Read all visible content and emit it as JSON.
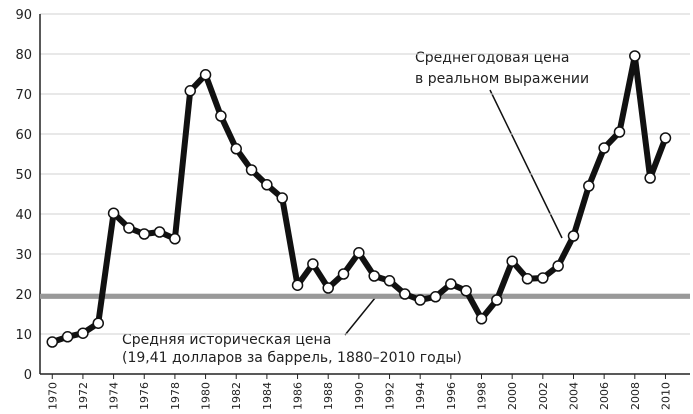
{
  "chart_data": {
    "type": "line",
    "x": [
      1970,
      1971,
      1972,
      1973,
      1974,
      1975,
      1976,
      1977,
      1978,
      1979,
      1980,
      1981,
      1982,
      1983,
      1984,
      1985,
      1986,
      1987,
      1988,
      1989,
      1990,
      1991,
      1992,
      1993,
      1994,
      1995,
      1996,
      1997,
      1998,
      1999,
      2000,
      2001,
      2002,
      2003,
      2004,
      2005,
      2006,
      2007,
      2008,
      2009,
      2010
    ],
    "series": [
      {
        "color": "#111111",
        "values": [
          8,
          9.3,
          10.2,
          12.7,
          40.2,
          36.5,
          35,
          35.5,
          33.8,
          70.8,
          74.8,
          64.5,
          56.3,
          51,
          47.3,
          44,
          22.2,
          27.5,
          21.5,
          25,
          30.3,
          24.5,
          23.3,
          20,
          18.5,
          19.3,
          22.5,
          20.8,
          13.8,
          18.5,
          28.2,
          23.8,
          24,
          27,
          34.5,
          47,
          56.5,
          60.5,
          79.5,
          49,
          59
        ]
      }
    ],
    "reference_line": {
      "value": 19.41,
      "color": "#999999"
    },
    "annotations": [
      {
        "lines": [
          "Среднегодовая цена",
          "в реальном выражении"
        ]
      },
      {
        "lines": [
          "Средняя историческая цена",
          "(19,41 долларов за баррель, 1880–2010 годы)"
        ]
      }
    ],
    "xlim": [
      1969.2,
      2011.6
    ],
    "xticks": [
      1970,
      1972,
      1974,
      1976,
      1978,
      1980,
      1982,
      1984,
      1986,
      1988,
      1990,
      1992,
      1994,
      1996,
      1998,
      2000,
      2002,
      2004,
      2006,
      2008,
      2010
    ],
    "ylim": [
      0,
      90
    ],
    "yticks": [
      0,
      10,
      20,
      30,
      40,
      50,
      60,
      70,
      80,
      90
    ],
    "grid": true
  }
}
